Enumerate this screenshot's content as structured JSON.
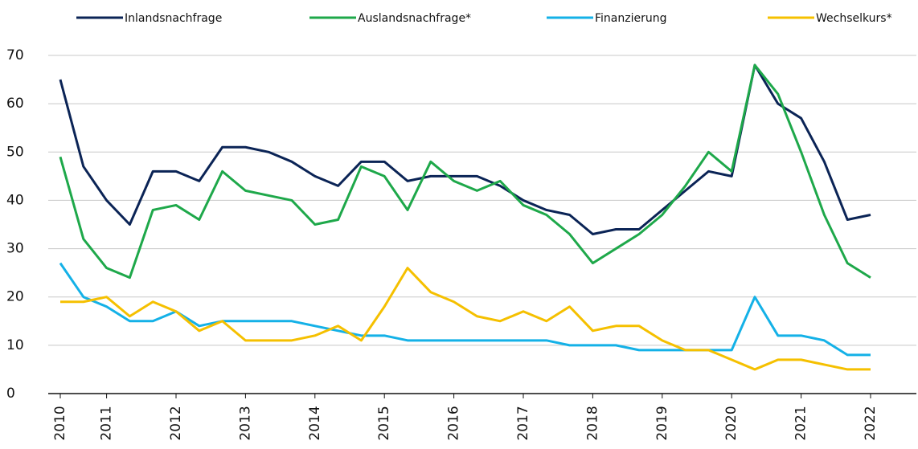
{
  "chart_data": {
    "type": "line",
    "categories": [
      "2010",
      null,
      "2011",
      null,
      null,
      "2012",
      null,
      null,
      "2013",
      null,
      null,
      "2014",
      null,
      null,
      "2015",
      null,
      null,
      "2016",
      null,
      null,
      "2017",
      null,
      null,
      "2018",
      null,
      null,
      "2019",
      null,
      null,
      "2020",
      null,
      null,
      "2021",
      null,
      null,
      "2022"
    ],
    "series": [
      {
        "name": "Inlandsnachfrage",
        "color": "#0b2456",
        "values": [
          65,
          47,
          40,
          35,
          46,
          46,
          44,
          51,
          51,
          50,
          48,
          45,
          43,
          48,
          48,
          44,
          45,
          45,
          45,
          43,
          40,
          38,
          37,
          33,
          34,
          34,
          38,
          42,
          46,
          45,
          68,
          60,
          57,
          48,
          36,
          37
        ]
      },
      {
        "name": "Auslandsnachfrage*",
        "color": "#1ea84a",
        "values": [
          49,
          32,
          26,
          24,
          38,
          39,
          36,
          46,
          42,
          41,
          40,
          35,
          36,
          47,
          45,
          38,
          48,
          44,
          42,
          44,
          39,
          37,
          33,
          27,
          30,
          33,
          37,
          43,
          50,
          46,
          68,
          62,
          50,
          37,
          27,
          24
        ]
      },
      {
        "name": "Finanzierung",
        "color": "#14b1e7",
        "values": [
          27,
          20,
          18,
          15,
          15,
          17,
          14,
          15,
          15,
          15,
          15,
          14,
          13,
          12,
          12,
          11,
          11,
          11,
          11,
          11,
          11,
          11,
          10,
          10,
          10,
          9,
          9,
          9,
          9,
          9,
          20,
          12,
          12,
          11,
          8,
          8
        ]
      },
      {
        "name": "Wechselkurs*",
        "color": "#f5c000",
        "values": [
          19,
          19,
          20,
          16,
          19,
          17,
          13,
          15,
          11,
          11,
          11,
          12,
          14,
          11,
          18,
          26,
          21,
          19,
          16,
          15,
          17,
          15,
          18,
          13,
          14,
          14,
          11,
          9,
          9,
          7,
          5,
          7,
          7,
          6,
          5,
          5
        ]
      }
    ],
    "ylim": [
      0,
      70
    ],
    "yticks": [
      0,
      10,
      20,
      30,
      40,
      50,
      60,
      70
    ],
    "grid": true,
    "legend": "top"
  }
}
